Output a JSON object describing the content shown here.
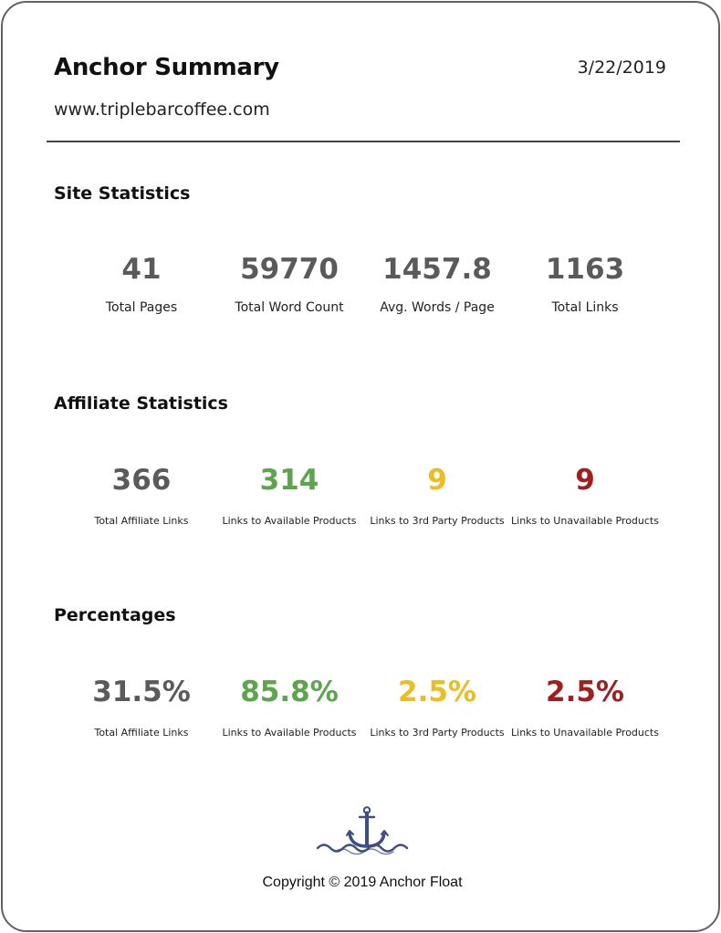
{
  "header": {
    "title": "Anchor Summary",
    "date": "3/22/2019",
    "url": "www.triplebarcoffee.com"
  },
  "colors": {
    "neutral": "#5a5a5a",
    "available": "#5aa64b",
    "third_party": "#efbc1f",
    "unavailable": "#a21d1d",
    "logo": "#3f4f85"
  },
  "site_statistics": {
    "title": "Site Statistics",
    "stats": [
      {
        "value": "41",
        "label": "Total Pages"
      },
      {
        "value": "59770",
        "label": "Total Word Count"
      },
      {
        "value": "1457.8",
        "label": "Avg. Words / Page"
      },
      {
        "value": "1163",
        "label": "Total Links"
      }
    ]
  },
  "affiliate_statistics": {
    "title": "Affiliate Statistics",
    "stats": [
      {
        "value": "366",
        "label": "Total Affiliate Links"
      },
      {
        "value": "314",
        "label": "Links to Available Products"
      },
      {
        "value": "9",
        "label": "Links to 3rd Party Products"
      },
      {
        "value": "9",
        "label": "Links to Unavailable Products"
      }
    ]
  },
  "percentages": {
    "title": "Percentages",
    "stats": [
      {
        "value": "31.5%",
        "label": "Total Affiliate Links"
      },
      {
        "value": "85.8%",
        "label": "Links to Available Products"
      },
      {
        "value": "2.5%",
        "label": "Links to 3rd Party Products"
      },
      {
        "value": "2.5%",
        "label": "Links to Unavailable Products"
      }
    ]
  },
  "footer": {
    "logo_icon": "anchor-waves-icon",
    "copyright": "Copyright © 2019 Anchor Float"
  }
}
